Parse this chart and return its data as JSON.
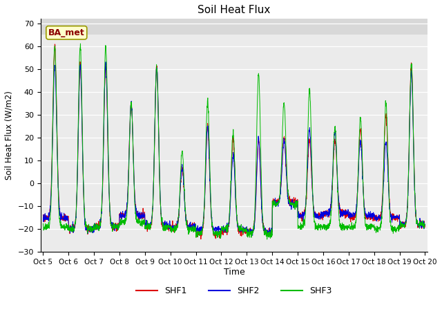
{
  "title": "Soil Heat Flux",
  "ylabel": "Soil Heat Flux (W/m2)",
  "xlabel": "Time",
  "ylim": [
    -30,
    72
  ],
  "yticks": [
    -30,
    -20,
    -10,
    0,
    10,
    20,
    30,
    40,
    50,
    60,
    70
  ],
  "plot_bg_color": "#ebebeb",
  "upper_band_color": "#d8d8d8",
  "fig_color": "#ffffff",
  "line_colors": {
    "SHF1": "#dd0000",
    "SHF2": "#0000dd",
    "SHF3": "#00bb00"
  },
  "legend_label": "BA_met",
  "legend_box_facecolor": "#ffffcc",
  "legend_box_edgecolor": "#999900",
  "grid_color": "#ffffff",
  "num_days": 15,
  "start_day": 5,
  "pts_per_day": 144
}
